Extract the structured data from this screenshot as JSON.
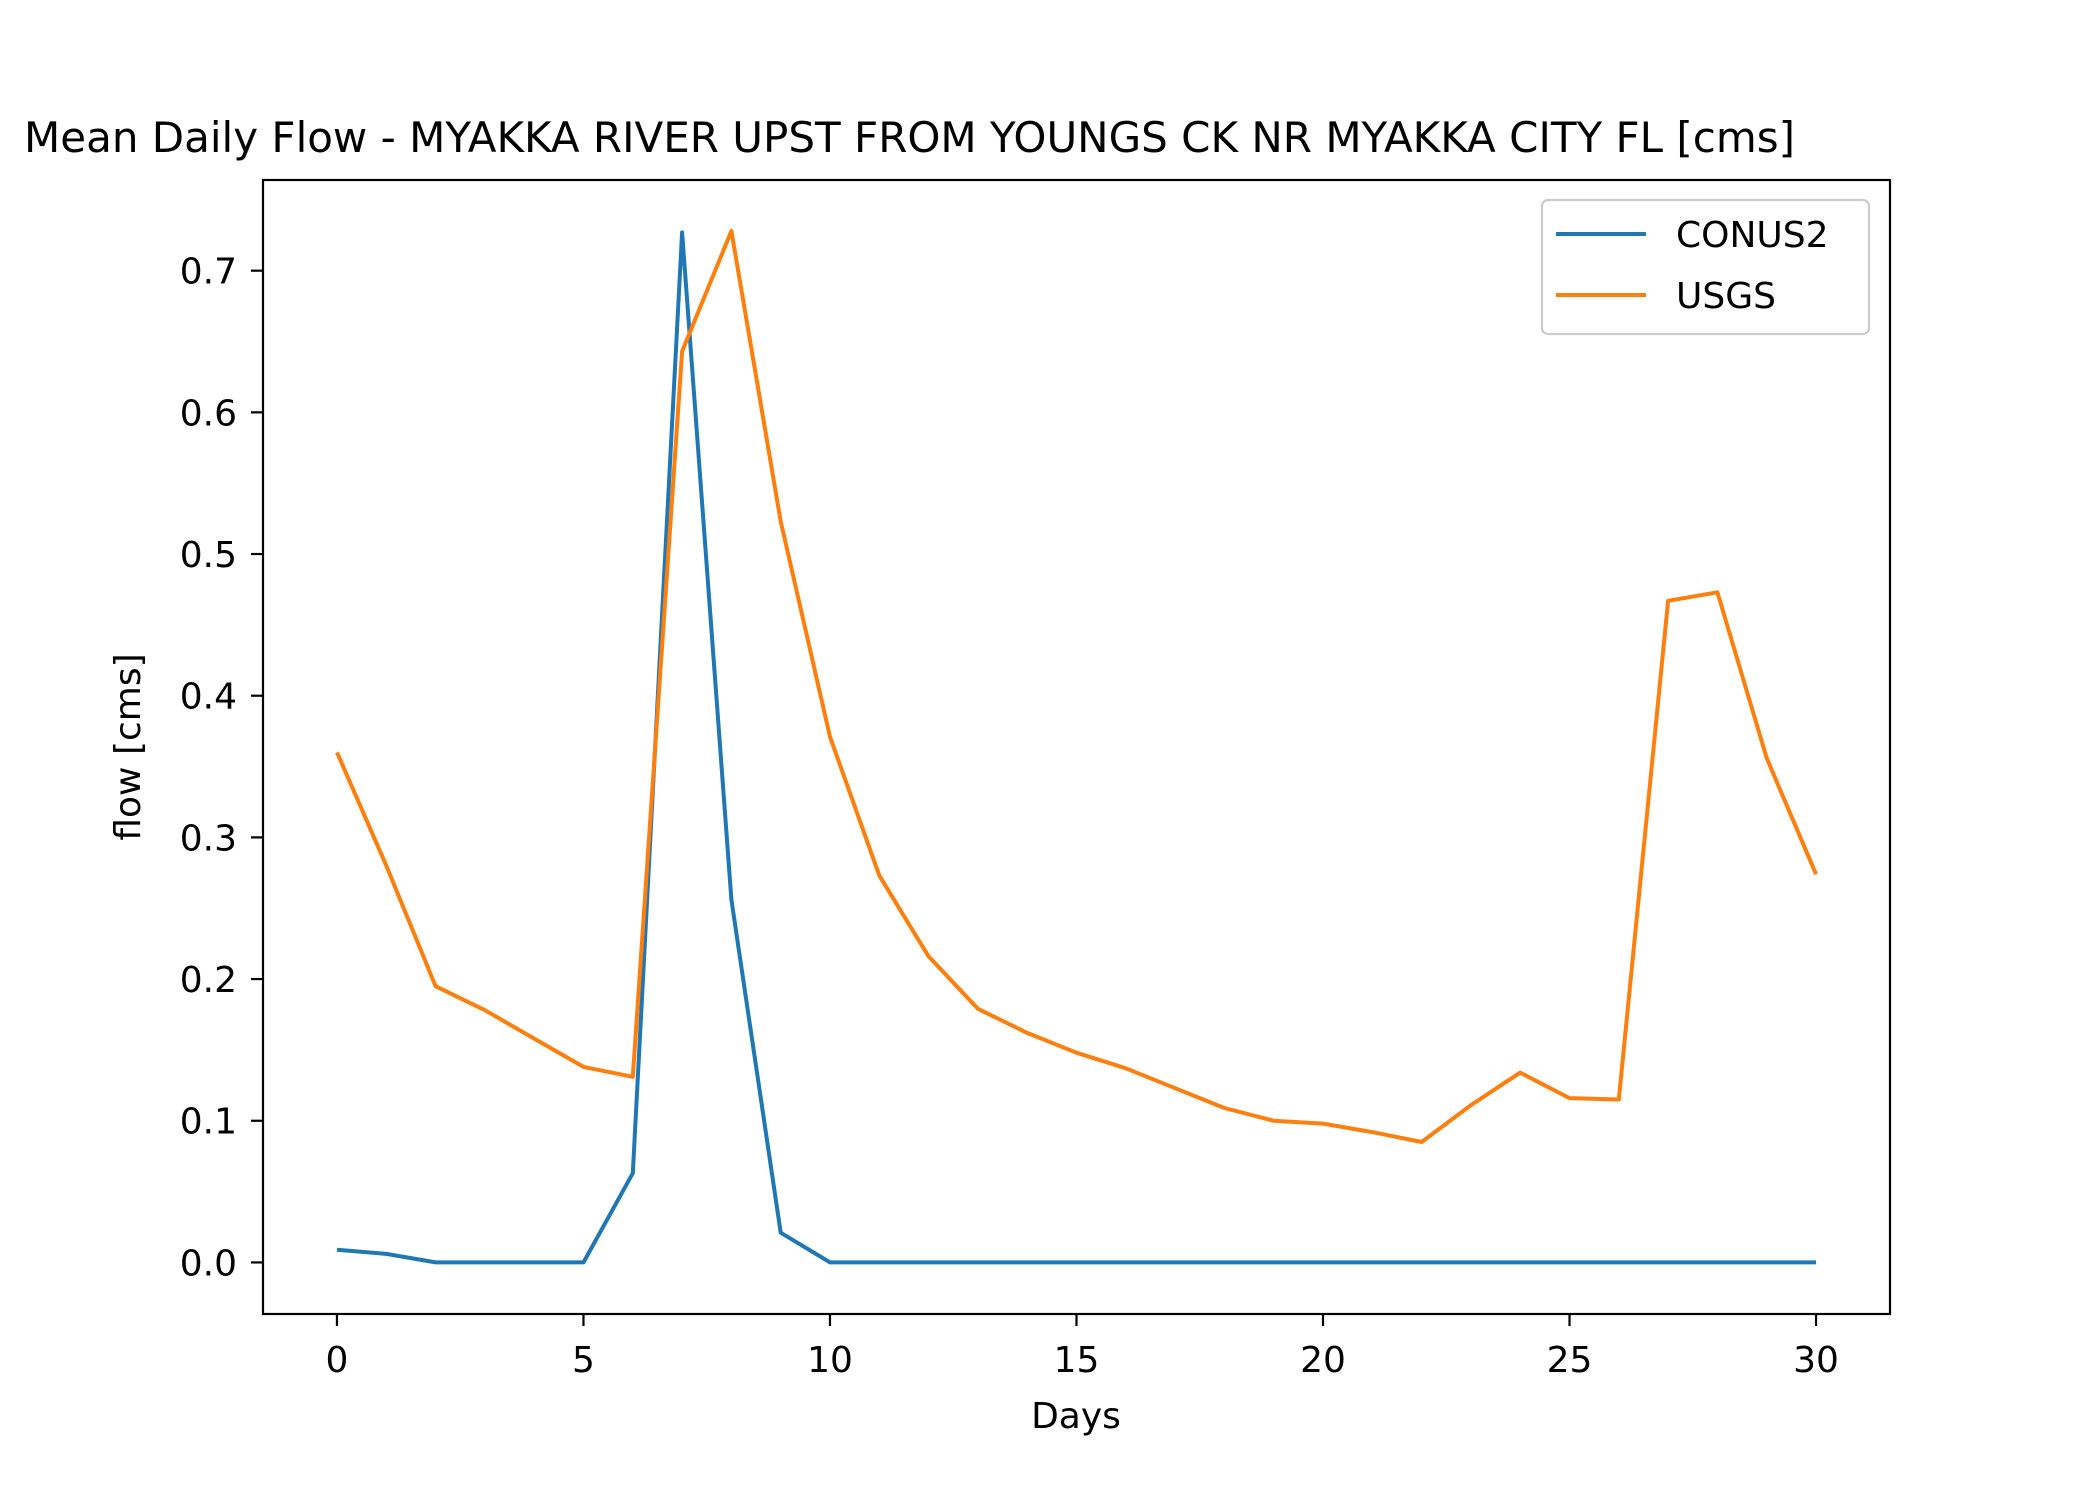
{
  "chart_data": {
    "type": "line",
    "title": "Mean Daily Flow - MYAKKA RIVER UPST FROM YOUNGS CK NR MYAKKA CITY FL [cms]",
    "xlabel": "Days",
    "ylabel": "flow [cms]",
    "xlim": [
      -1.5,
      31.5
    ],
    "ylim": [
      -0.0364,
      0.764
    ],
    "xticks": [
      0,
      5,
      10,
      15,
      20,
      25,
      30
    ],
    "xtick_labels": [
      "0",
      "5",
      "10",
      "15",
      "20",
      "25",
      "30"
    ],
    "yticks": [
      0.0,
      0.1,
      0.2,
      0.3,
      0.4,
      0.5,
      0.6,
      0.7
    ],
    "ytick_labels": [
      "0.0",
      "0.1",
      "0.2",
      "0.3",
      "0.4",
      "0.5",
      "0.6",
      "0.7"
    ],
    "grid": false,
    "legend_position": "upper-right",
    "x": [
      0,
      1,
      2,
      3,
      4,
      5,
      6,
      7,
      8,
      9,
      10,
      11,
      12,
      13,
      14,
      15,
      16,
      17,
      18,
      19,
      20,
      21,
      22,
      23,
      24,
      25,
      26,
      27,
      28,
      29,
      30
    ],
    "series": [
      {
        "name": "CONUS2",
        "color": "#1f77b4",
        "values": [
          0.009,
          0.006,
          0.0,
          0.0,
          0.0,
          0.0,
          0.063,
          0.727,
          0.256,
          0.021,
          0.0,
          0.0,
          0.0,
          0.0,
          0.0,
          0.0,
          0.0,
          0.0,
          0.0,
          0.0,
          0.0,
          0.0,
          0.0,
          0.0,
          0.0,
          0.0,
          0.0,
          0.0,
          0.0,
          0.0,
          0.0
        ]
      },
      {
        "name": "USGS",
        "color": "#ff7f0e",
        "values": [
          0.36,
          0.28,
          0.195,
          0.178,
          0.158,
          0.138,
          0.131,
          0.643,
          0.728,
          0.523,
          0.371,
          0.273,
          0.216,
          0.179,
          0.162,
          0.148,
          0.137,
          0.123,
          0.109,
          0.1,
          0.098,
          0.092,
          0.085,
          0.111,
          0.134,
          0.116,
          0.115,
          0.467,
          0.473,
          0.356,
          0.274
        ]
      }
    ]
  }
}
